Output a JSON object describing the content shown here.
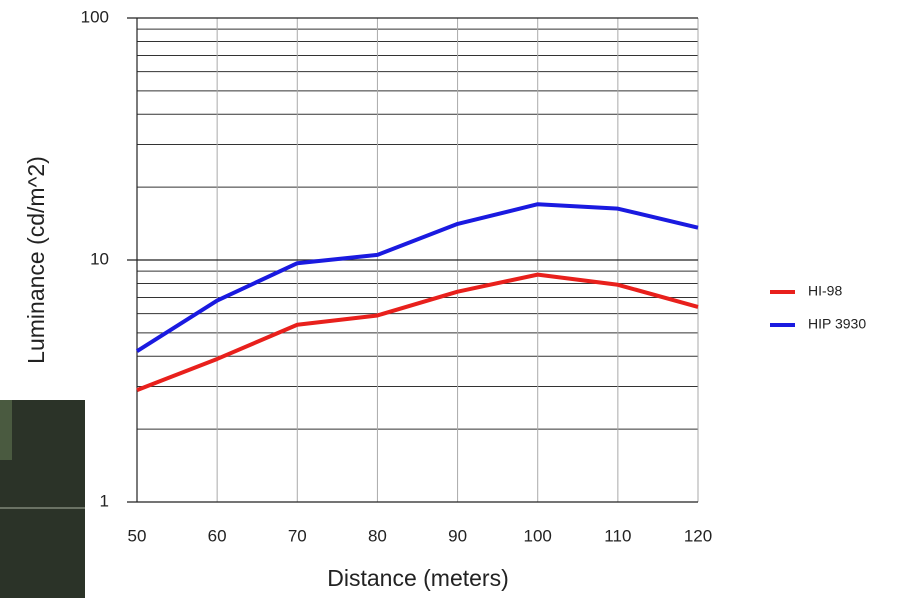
{
  "chart_data": {
    "type": "line",
    "x_label": "Distance (meters)",
    "y_label": "Luminance (cd/m^2)",
    "x": [
      50,
      60,
      70,
      80,
      90,
      100,
      110,
      120
    ],
    "series": [
      {
        "name": "HI-98",
        "color": "#e8201c",
        "values": [
          2.9,
          3.9,
          5.4,
          5.9,
          7.4,
          8.7,
          7.9,
          6.4
        ]
      },
      {
        "name": "HIP 3930",
        "color": "#1a1ae0",
        "values": [
          4.2,
          6.8,
          9.7,
          10.5,
          14.1,
          17,
          16.3,
          13.6
        ]
      }
    ],
    "xlim": [
      50,
      120
    ],
    "xticks": [
      50,
      60,
      70,
      80,
      90,
      100,
      110,
      120
    ],
    "ylim": [
      1,
      100
    ],
    "yticks": [
      1,
      10,
      100
    ],
    "yminorticks": [
      2,
      3,
      4,
      5,
      6,
      7,
      8,
      9,
      20,
      30,
      40,
      50,
      60,
      70,
      80,
      90
    ],
    "y_scale": "log",
    "grid": true,
    "legend": "right"
  }
}
